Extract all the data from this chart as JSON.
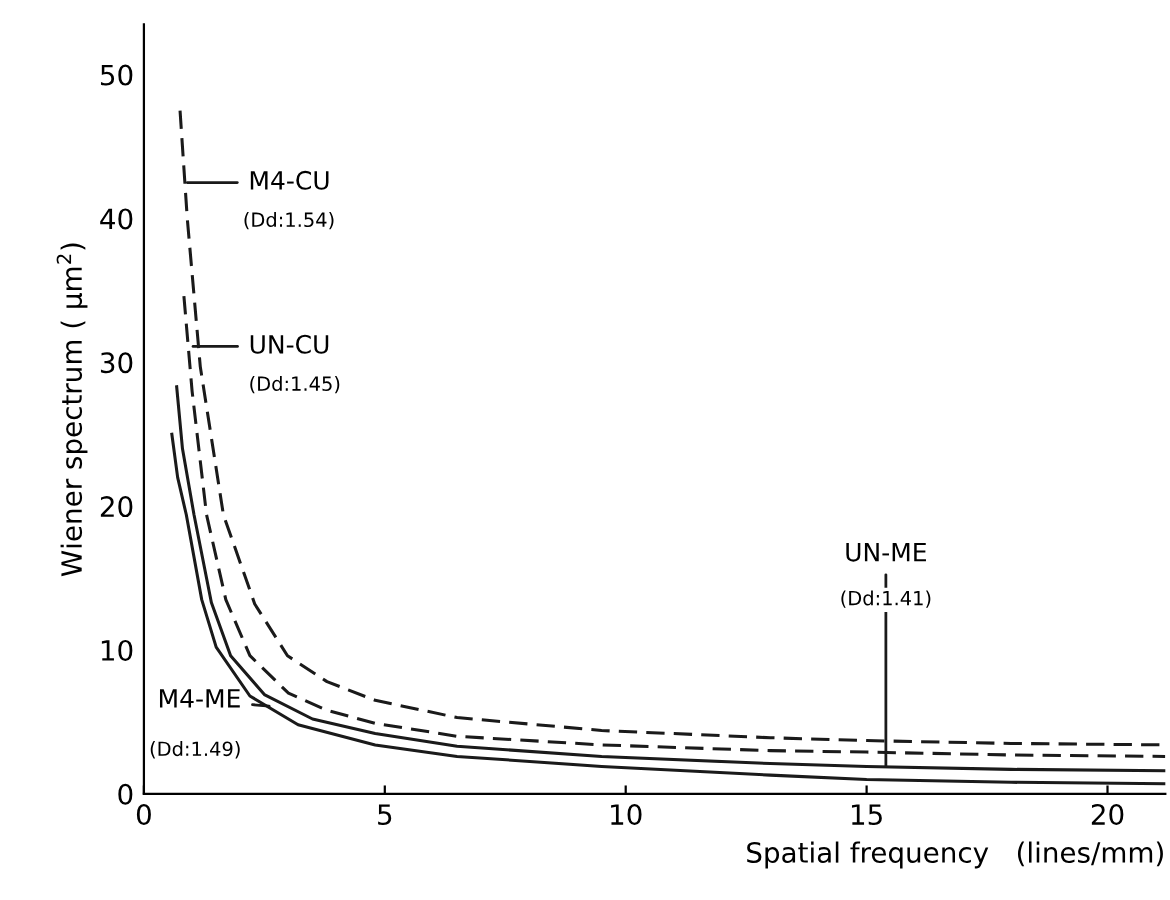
{
  "chart_data": {
    "type": "line",
    "xlabel": "Spatial frequency   (lines/mm)",
    "ylabel": "Wiener spectrum ( μm$^{2}$)",
    "xlim": [
      0,
      21.2
    ],
    "ylim": [
      0,
      53.5
    ],
    "xticks": [
      0,
      5,
      10,
      15,
      20
    ],
    "yticks": [
      0,
      10,
      20,
      30,
      40,
      50
    ],
    "grid": false,
    "legend": false,
    "marker": "none",
    "series": [
      {
        "color": "#1a1a1a",
        "line_style": "dashed",
        "x": [
          0.75,
          0.9,
          1.17,
          1.65,
          2.3,
          2.98,
          3.8,
          4.8,
          6.5,
          9.5,
          13,
          15,
          18,
          21.2
        ],
        "values": [
          47.5,
          40,
          29.7,
          19.4,
          13.2,
          9.6,
          7.8,
          6.5,
          5.3,
          4.4,
          3.9,
          3.7,
          3.5,
          3.4
        ]
      },
      {
        "color": "#1a1a1a",
        "line_style": "dashed",
        "x": [
          0.83,
          1.0,
          1.3,
          1.7,
          2.2,
          3.0,
          3.8,
          4.8,
          6.5,
          9.5,
          13,
          15,
          18,
          21.2
        ],
        "values": [
          34.6,
          28,
          19.4,
          13.5,
          9.6,
          7.0,
          5.8,
          4.9,
          4.0,
          3.4,
          3.0,
          2.9,
          2.7,
          2.6
        ]
      },
      {
        "color": "#1a1a1a",
        "line_style": "solid",
        "x": [
          0.68,
          0.8,
          1.04,
          1.4,
          1.8,
          2.5,
          3.5,
          4.8,
          6.5,
          9.5,
          13,
          15,
          18,
          21.2
        ],
        "values": [
          28.3,
          24,
          19.4,
          13.3,
          9.6,
          6.9,
          5.2,
          4.2,
          3.3,
          2.6,
          2.1,
          1.9,
          1.7,
          1.6
        ]
      },
      {
        "color": "#1a1a1a",
        "line_style": "solid",
        "x": [
          0.58,
          0.7,
          0.88,
          1.2,
          1.5,
          2.2,
          3.2,
          4.8,
          6.5,
          9.5,
          13,
          15,
          18,
          21.2
        ],
        "values": [
          25,
          22,
          19.4,
          13.5,
          10.2,
          6.8,
          4.8,
          3.4,
          2.6,
          1.9,
          1.3,
          1.0,
          0.8,
          0.7
        ]
      }
    ],
    "annotations": [
      {
        "text": "M4-CU",
        "x": 0.9,
        "y": 42.5
      },
      "(Dd:1.54)",
      {
        "text": "UN-CU",
        "x": 1.02,
        "y": 31.1
      },
      "(Dd:1.45)",
      {
        "text": "M4-ME",
        "x": 2.6,
        "y": 6.1
      },
      "(Dd:1.49)",
      {
        "text": "UN-ME",
        "x": 15.4,
        "y": 1.9
      },
      "(Dd:1.41)"
    ]
  }
}
